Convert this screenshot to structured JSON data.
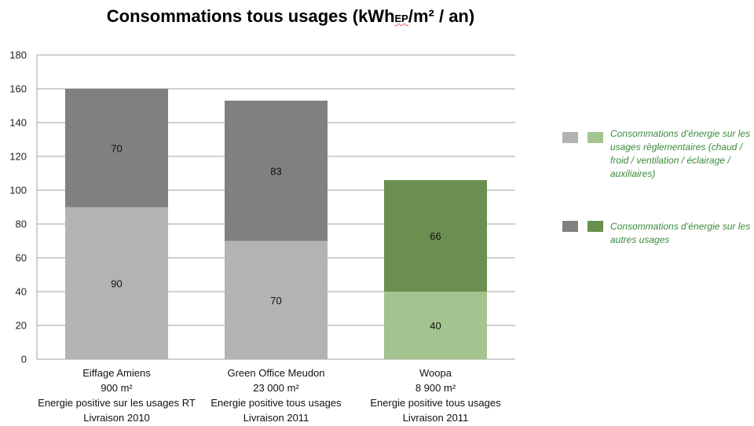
{
  "title_main": "Consommations tous usages (kWh",
  "title_sub": "EP",
  "title_tail": "/m² / an)",
  "colors": {
    "reg_gray": "#b3b3b3",
    "other_gray": "#808080",
    "reg_green": "#a3c48f",
    "other_green": "#6a8f4e",
    "legend_text": "#3a8a3a"
  },
  "legend": [
    {
      "label": "Consommations d’énergie sur les usages règlementaires (chaud / froid / ventilation / éclairage / auxiliaires)"
    },
    {
      "label": "Consommations d’énergie sur les autres usages"
    }
  ],
  "chart_data": {
    "type": "bar",
    "stacked": true,
    "title": "Consommations tous usages (kWhEP/m² / an)",
    "ylim": [
      0,
      180
    ],
    "yticks": [
      0,
      20,
      40,
      60,
      80,
      100,
      120,
      140,
      160,
      180
    ],
    "grid": true,
    "categories": [
      {
        "lines": [
          "Eiffage Amiens",
          "900 m²",
          "Energie positive sur les usages RT",
          "Livraison 2010"
        ]
      },
      {
        "lines": [
          "Green Office Meudon",
          "23 000 m²",
          "Energie positive tous usages",
          "Livraison 2011"
        ]
      },
      {
        "lines": [
          "Woopa",
          "8 900 m²",
          "Energie positive tous usages",
          "Livraison 2011"
        ]
      }
    ],
    "series": [
      {
        "name": "Consommations d’énergie sur les usages règlementaires",
        "values": [
          90,
          70,
          40
        ]
      },
      {
        "name": "Consommations d’énergie sur les autres usages",
        "values": [
          70,
          83,
          66
        ]
      }
    ]
  }
}
